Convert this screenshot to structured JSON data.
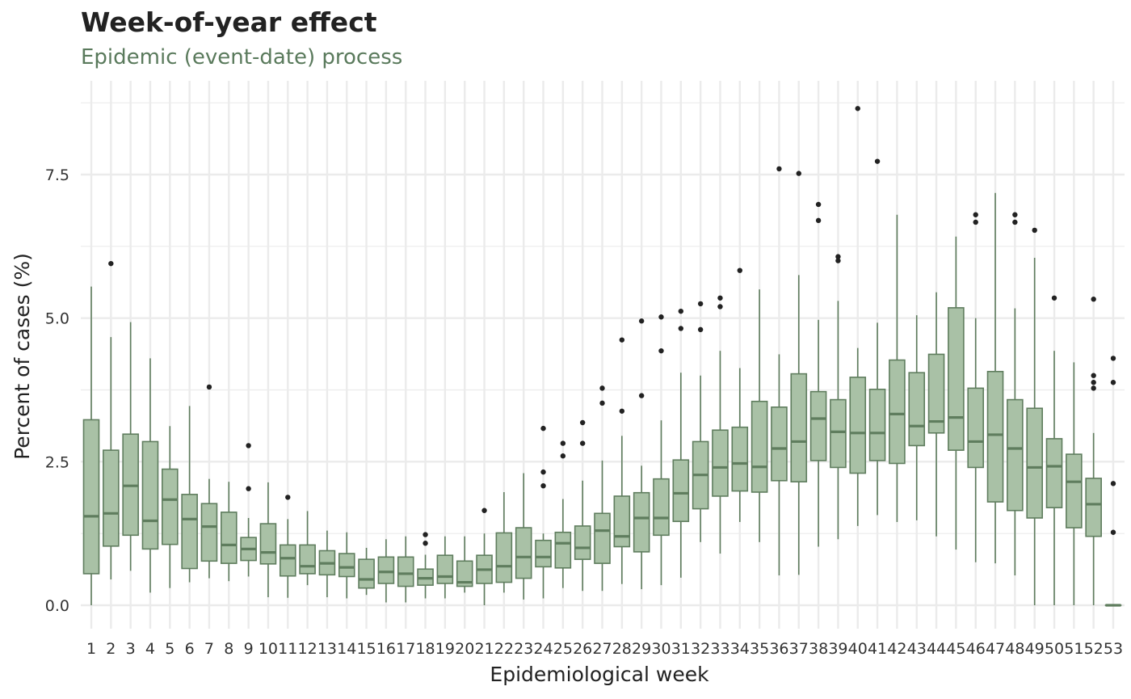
{
  "chart_data": {
    "type": "boxplot",
    "title": "Week-of-year effect",
    "subtitle": "Epidemic (event-date) process",
    "xlabel": "Epidemiological week",
    "ylabel": "Percent of cases (%)",
    "ylim": [
      -0.3,
      9.1
    ],
    "yticks": [
      0,
      2.5,
      5,
      7.5
    ],
    "ytick_labels": [
      "0.0",
      "2.5",
      "5.0",
      "7.5"
    ],
    "grid": true,
    "colors": {
      "fill": "#a9c1a6",
      "stroke": "#5f7d5e",
      "outlier": "#222222",
      "grid": "#ebebeb"
    },
    "weeks": [
      {
        "week": "1",
        "min": 0.0,
        "q1": 0.55,
        "median": 1.55,
        "q3": 3.23,
        "max": 5.55,
        "outliers": []
      },
      {
        "week": "2",
        "min": 0.45,
        "q1": 1.03,
        "median": 1.6,
        "q3": 2.7,
        "max": 4.67,
        "outliers": [
          5.95
        ]
      },
      {
        "week": "3",
        "min": 0.6,
        "q1": 1.22,
        "median": 2.08,
        "q3": 2.98,
        "max": 4.93,
        "outliers": []
      },
      {
        "week": "4",
        "min": 0.22,
        "q1": 0.98,
        "median": 1.47,
        "q3": 2.85,
        "max": 4.3,
        "outliers": []
      },
      {
        "week": "5",
        "min": 0.3,
        "q1": 1.06,
        "median": 1.84,
        "q3": 2.37,
        "max": 3.12,
        "outliers": []
      },
      {
        "week": "6",
        "min": 0.4,
        "q1": 0.64,
        "median": 1.5,
        "q3": 1.93,
        "max": 3.47,
        "outliers": []
      },
      {
        "week": "7",
        "min": 0.47,
        "q1": 0.77,
        "median": 1.37,
        "q3": 1.77,
        "max": 2.2,
        "outliers": [
          3.8
        ]
      },
      {
        "week": "8",
        "min": 0.42,
        "q1": 0.73,
        "median": 1.05,
        "q3": 1.62,
        "max": 2.15,
        "outliers": []
      },
      {
        "week": "9",
        "min": 0.5,
        "q1": 0.78,
        "median": 0.98,
        "q3": 1.18,
        "max": 1.52,
        "outliers": [
          2.03,
          2.78
        ]
      },
      {
        "week": "10",
        "min": 0.14,
        "q1": 0.72,
        "median": 0.92,
        "q3": 1.42,
        "max": 2.14,
        "outliers": []
      },
      {
        "week": "11",
        "min": 0.13,
        "q1": 0.51,
        "median": 0.82,
        "q3": 1.05,
        "max": 1.5,
        "outliers": [
          1.88
        ]
      },
      {
        "week": "12",
        "min": 0.35,
        "q1": 0.55,
        "median": 0.68,
        "q3": 1.05,
        "max": 1.64,
        "outliers": []
      },
      {
        "week": "13",
        "min": 0.14,
        "q1": 0.53,
        "median": 0.73,
        "q3": 0.95,
        "max": 1.3,
        "outliers": []
      },
      {
        "week": "14",
        "min": 0.12,
        "q1": 0.5,
        "median": 0.66,
        "q3": 0.9,
        "max": 1.27,
        "outliers": []
      },
      {
        "week": "15",
        "min": 0.18,
        "q1": 0.3,
        "median": 0.45,
        "q3": 0.8,
        "max": 1.0,
        "outliers": []
      },
      {
        "week": "16",
        "min": 0.05,
        "q1": 0.38,
        "median": 0.58,
        "q3": 0.84,
        "max": 1.15,
        "outliers": []
      },
      {
        "week": "17",
        "min": 0.05,
        "q1": 0.33,
        "median": 0.55,
        "q3": 0.84,
        "max": 1.2,
        "outliers": []
      },
      {
        "week": "18",
        "min": 0.12,
        "q1": 0.35,
        "median": 0.47,
        "q3": 0.63,
        "max": 0.88,
        "outliers": [
          1.08,
          1.23
        ]
      },
      {
        "week": "19",
        "min": 0.12,
        "q1": 0.38,
        "median": 0.5,
        "q3": 0.87,
        "max": 1.2,
        "outliers": []
      },
      {
        "week": "20",
        "min": 0.22,
        "q1": 0.33,
        "median": 0.4,
        "q3": 0.77,
        "max": 1.2,
        "outliers": []
      },
      {
        "week": "21",
        "min": 0.0,
        "q1": 0.38,
        "median": 0.62,
        "q3": 0.87,
        "max": 1.25,
        "outliers": [
          1.65
        ]
      },
      {
        "week": "22",
        "min": 0.22,
        "q1": 0.4,
        "median": 0.68,
        "q3": 1.26,
        "max": 1.97,
        "outliers": []
      },
      {
        "week": "23",
        "min": 0.1,
        "q1": 0.47,
        "median": 0.84,
        "q3": 1.35,
        "max": 2.3,
        "outliers": []
      },
      {
        "week": "24",
        "min": 0.12,
        "q1": 0.67,
        "median": 0.84,
        "q3": 1.13,
        "max": 1.25,
        "outliers": [
          2.08,
          2.32,
          3.08
        ]
      },
      {
        "week": "25",
        "min": 0.3,
        "q1": 0.65,
        "median": 1.08,
        "q3": 1.27,
        "max": 1.85,
        "outliers": [
          2.6,
          2.82
        ]
      },
      {
        "week": "26",
        "min": 0.25,
        "q1": 0.8,
        "median": 1.0,
        "q3": 1.38,
        "max": 2.17,
        "outliers": [
          2.82,
          3.18
        ]
      },
      {
        "week": "27",
        "min": 0.25,
        "q1": 0.73,
        "median": 1.3,
        "q3": 1.6,
        "max": 2.52,
        "outliers": [
          3.52,
          3.78
        ]
      },
      {
        "week": "28",
        "min": 0.37,
        "q1": 1.02,
        "median": 1.2,
        "q3": 1.9,
        "max": 2.95,
        "outliers": [
          3.38,
          4.62
        ]
      },
      {
        "week": "29",
        "min": 0.28,
        "q1": 0.93,
        "median": 1.52,
        "q3": 1.96,
        "max": 2.43,
        "outliers": [
          3.65,
          4.95
        ]
      },
      {
        "week": "30",
        "min": 0.35,
        "q1": 1.22,
        "median": 1.52,
        "q3": 2.2,
        "max": 3.22,
        "outliers": [
          4.43,
          5.02
        ]
      },
      {
        "week": "31",
        "min": 0.48,
        "q1": 1.46,
        "median": 1.95,
        "q3": 2.53,
        "max": 4.05,
        "outliers": [
          4.82,
          5.12
        ]
      },
      {
        "week": "32",
        "min": 1.1,
        "q1": 1.68,
        "median": 2.27,
        "q3": 2.85,
        "max": 4.0,
        "outliers": [
          4.8,
          5.25
        ]
      },
      {
        "week": "33",
        "min": 0.9,
        "q1": 1.9,
        "median": 2.4,
        "q3": 3.05,
        "max": 4.43,
        "outliers": [
          5.2,
          5.35
        ]
      },
      {
        "week": "34",
        "min": 1.45,
        "q1": 1.99,
        "median": 2.47,
        "q3": 3.1,
        "max": 4.13,
        "outliers": [
          5.83
        ]
      },
      {
        "week": "35",
        "min": 1.1,
        "q1": 1.97,
        "median": 2.41,
        "q3": 3.55,
        "max": 5.5,
        "outliers": []
      },
      {
        "week": "36",
        "min": 0.52,
        "q1": 2.17,
        "median": 2.73,
        "q3": 3.45,
        "max": 4.37,
        "outliers": [
          7.6
        ]
      },
      {
        "week": "37",
        "min": 0.53,
        "q1": 2.15,
        "median": 2.85,
        "q3": 4.03,
        "max": 5.75,
        "outliers": [
          7.52
        ]
      },
      {
        "week": "38",
        "min": 1.02,
        "q1": 2.52,
        "median": 3.25,
        "q3": 3.72,
        "max": 4.97,
        "outliers": [
          6.7,
          6.98
        ]
      },
      {
        "week": "39",
        "min": 1.15,
        "q1": 2.4,
        "median": 3.02,
        "q3": 3.58,
        "max": 5.3,
        "outliers": [
          6.0,
          6.07
        ]
      },
      {
        "week": "40",
        "min": 1.38,
        "q1": 2.3,
        "median": 3.0,
        "q3": 3.97,
        "max": 4.48,
        "outliers": [
          8.65
        ]
      },
      {
        "week": "41",
        "min": 1.57,
        "q1": 2.52,
        "median": 3.0,
        "q3": 3.76,
        "max": 4.92,
        "outliers": [
          7.73
        ]
      },
      {
        "week": "42",
        "min": 1.45,
        "q1": 2.47,
        "median": 3.33,
        "q3": 4.27,
        "max": 6.8,
        "outliers": []
      },
      {
        "week": "43",
        "min": 1.48,
        "q1": 2.78,
        "median": 3.12,
        "q3": 4.05,
        "max": 5.05,
        "outliers": []
      },
      {
        "week": "44",
        "min": 1.2,
        "q1": 3.0,
        "median": 3.2,
        "q3": 4.37,
        "max": 5.45,
        "outliers": []
      },
      {
        "week": "45",
        "min": 0.97,
        "q1": 2.7,
        "median": 3.27,
        "q3": 5.18,
        "max": 6.42,
        "outliers": []
      },
      {
        "week": "46",
        "min": 0.75,
        "q1": 2.4,
        "median": 2.85,
        "q3": 3.78,
        "max": 5.0,
        "outliers": [
          6.67,
          6.8
        ]
      },
      {
        "week": "47",
        "min": 0.73,
        "q1": 1.8,
        "median": 2.97,
        "q3": 4.07,
        "max": 7.18,
        "outliers": []
      },
      {
        "week": "48",
        "min": 0.52,
        "q1": 1.65,
        "median": 2.73,
        "q3": 3.58,
        "max": 5.17,
        "outliers": [
          6.67,
          6.8
        ]
      },
      {
        "week": "49",
        "min": 0.0,
        "q1": 1.52,
        "median": 2.4,
        "q3": 3.43,
        "max": 6.05,
        "outliers": [
          6.53
        ]
      },
      {
        "week": "50",
        "min": 0.0,
        "q1": 1.7,
        "median": 2.42,
        "q3": 2.9,
        "max": 4.43,
        "outliers": [
          5.35
        ]
      },
      {
        "week": "51",
        "min": 0.0,
        "q1": 1.35,
        "median": 2.15,
        "q3": 2.63,
        "max": 4.23,
        "outliers": []
      },
      {
        "week": "52",
        "min": 0.0,
        "q1": 1.2,
        "median": 1.76,
        "q3": 2.21,
        "max": 3.0,
        "outliers": [
          3.78,
          3.88,
          4.0,
          5.33
        ]
      },
      {
        "week": "53",
        "min": 0.0,
        "q1": 0.0,
        "median": 0.0,
        "q3": 0.0,
        "max": 0.0,
        "outliers": [
          1.27,
          2.12,
          3.88,
          4.3
        ]
      }
    ]
  }
}
